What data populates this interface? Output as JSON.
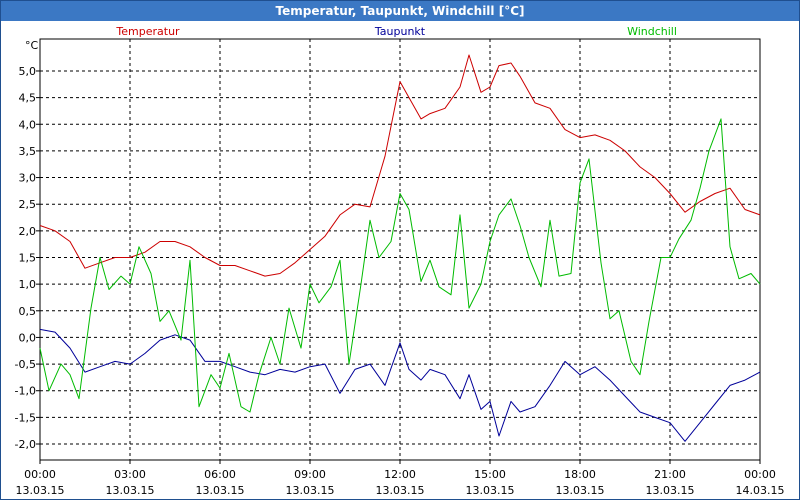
{
  "window_title": "Temperatur, Taupunkt, Windchill [°C]",
  "chart_data": {
    "type": "line",
    "title": "Temperatur, Taupunkt, Windchill [°C]",
    "ylabel": "°C",
    "ylim": [
      -2.3,
      5.6
    ],
    "grid": true,
    "legend": "top",
    "x_ticks": [
      {
        "time": "00:00",
        "date": "13.03.15",
        "h": 0
      },
      {
        "time": "03:00",
        "date": "13.03.15",
        "h": 3
      },
      {
        "time": "06:00",
        "date": "13.03.15",
        "h": 6
      },
      {
        "time": "09:00",
        "date": "13.03.15",
        "h": 9
      },
      {
        "time": "12:00",
        "date": "13.03.15",
        "h": 12
      },
      {
        "time": "15:00",
        "date": "13.03.15",
        "h": 15
      },
      {
        "time": "18:00",
        "date": "13.03.15",
        "h": 18
      },
      {
        "time": "21:00",
        "date": "13.03.15",
        "h": 21
      },
      {
        "time": "00:00",
        "date": "14.03.15",
        "h": 24
      }
    ],
    "y_ticks": [
      "5,0",
      "4,5",
      "4,0",
      "3,5",
      "3,0",
      "2,5",
      "2,0",
      "1,5",
      "1,0",
      "0,5",
      "0,0",
      "-0,5",
      "-1,0",
      "-1,5",
      "-2,0"
    ],
    "y_tick_values": [
      5.0,
      4.5,
      4.0,
      3.5,
      3.0,
      2.5,
      2.0,
      1.5,
      1.0,
      0.5,
      0.0,
      -0.5,
      -1.0,
      -1.5,
      -2.0
    ],
    "series": [
      {
        "name": "Temperatur",
        "color": "#cc0000",
        "x": [
          0,
          0.5,
          1,
          1.5,
          2,
          2.5,
          3,
          3.5,
          4,
          4.5,
          5,
          5.5,
          6,
          6.5,
          7,
          7.5,
          8,
          8.5,
          9,
          9.5,
          10,
          10.5,
          11,
          11.5,
          12,
          12.3,
          12.7,
          13,
          13.5,
          14,
          14.3,
          14.7,
          15,
          15.3,
          15.7,
          16,
          16.5,
          17,
          17.5,
          18,
          18.5,
          19,
          19.5,
          20,
          20.5,
          21,
          21.5,
          22,
          22.5,
          23,
          23.5,
          24
        ],
        "values": [
          2.1,
          2.0,
          1.8,
          1.3,
          1.4,
          1.5,
          1.5,
          1.6,
          1.8,
          1.8,
          1.7,
          1.5,
          1.35,
          1.35,
          1.25,
          1.15,
          1.2,
          1.4,
          1.65,
          1.9,
          2.3,
          2.5,
          2.45,
          3.4,
          4.8,
          4.5,
          4.1,
          4.2,
          4.3,
          4.7,
          5.3,
          4.6,
          4.7,
          5.1,
          5.15,
          4.9,
          4.4,
          4.3,
          3.9,
          3.75,
          3.8,
          3.7,
          3.5,
          3.2,
          3.0,
          2.7,
          2.35,
          2.55,
          2.7,
          2.8,
          2.4,
          2.3
        ]
      },
      {
        "name": "Taupunkt",
        "color": "#000099",
        "x": [
          0,
          0.5,
          1,
          1.5,
          2,
          2.5,
          3,
          3.5,
          4,
          4.5,
          5,
          5.5,
          6,
          6.5,
          7,
          7.5,
          8,
          8.5,
          9,
          9.5,
          10,
          10.5,
          11,
          11.5,
          12,
          12.3,
          12.7,
          13,
          13.5,
          14,
          14.3,
          14.7,
          15,
          15.3,
          15.7,
          16,
          16.5,
          17,
          17.5,
          18,
          18.5,
          19,
          19.5,
          20,
          20.5,
          21,
          21.5,
          22,
          22.5,
          23,
          23.5,
          24
        ],
        "values": [
          0.15,
          0.1,
          -0.2,
          -0.65,
          -0.55,
          -0.45,
          -0.5,
          -0.3,
          -0.05,
          0.05,
          -0.05,
          -0.45,
          -0.45,
          -0.55,
          -0.65,
          -0.7,
          -0.6,
          -0.65,
          -0.55,
          -0.5,
          -1.05,
          -0.6,
          -0.5,
          -0.9,
          -0.1,
          -0.6,
          -0.8,
          -0.6,
          -0.7,
          -1.15,
          -0.7,
          -1.35,
          -1.2,
          -1.85,
          -1.2,
          -1.4,
          -1.3,
          -0.9,
          -0.45,
          -0.7,
          -0.55,
          -0.8,
          -1.1,
          -1.4,
          -1.5,
          -1.6,
          -1.95,
          -1.6,
          -1.25,
          -0.9,
          -0.8,
          -0.65
        ]
      },
      {
        "name": "Windchill",
        "color": "#00bb00",
        "x": [
          0,
          0.3,
          0.7,
          1,
          1.3,
          1.7,
          2,
          2.3,
          2.7,
          3,
          3.3,
          3.7,
          4,
          4.3,
          4.7,
          5,
          5.3,
          5.7,
          6,
          6.3,
          6.7,
          7,
          7.3,
          7.7,
          8,
          8.3,
          8.7,
          9,
          9.3,
          9.7,
          10,
          10.3,
          10.7,
          11,
          11.3,
          11.7,
          12,
          12.3,
          12.7,
          13,
          13.3,
          13.7,
          14,
          14.3,
          14.7,
          15,
          15.3,
          15.7,
          16,
          16.3,
          16.7,
          17,
          17.3,
          17.7,
          18,
          18.3,
          18.7,
          19,
          19.3,
          19.7,
          20,
          20.3,
          20.7,
          21,
          21.3,
          21.7,
          22,
          22.3,
          22.7,
          23,
          23.3,
          23.7,
          24
        ],
        "values": [
          -0.2,
          -1.0,
          -0.5,
          -0.7,
          -1.15,
          0.55,
          1.5,
          0.9,
          1.15,
          1.0,
          1.7,
          1.2,
          0.3,
          0.5,
          -0.05,
          1.45,
          -1.3,
          -0.7,
          -0.95,
          -0.3,
          -1.3,
          -1.4,
          -0.7,
          0.0,
          -0.5,
          0.55,
          -0.2,
          1.0,
          0.65,
          0.95,
          1.45,
          -0.5,
          1.0,
          2.2,
          1.5,
          1.8,
          2.7,
          2.4,
          1.05,
          1.45,
          0.95,
          0.8,
          2.3,
          0.55,
          1.0,
          1.8,
          2.3,
          2.6,
          2.1,
          1.5,
          0.95,
          2.2,
          1.15,
          1.2,
          2.9,
          3.35,
          1.4,
          0.35,
          0.5,
          -0.45,
          -0.7,
          0.3,
          1.5,
          1.5,
          1.85,
          2.2,
          2.8,
          3.5,
          4.1,
          1.7,
          1.1,
          1.2,
          1.0
        ]
      }
    ]
  }
}
